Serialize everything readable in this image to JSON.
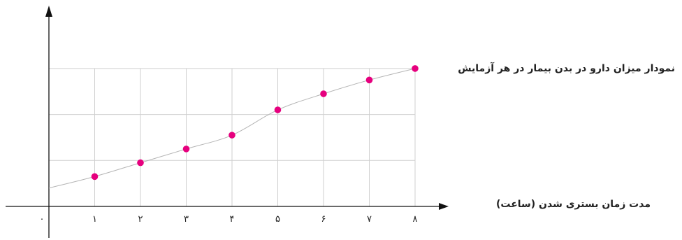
{
  "chart_data": {
    "type": "line",
    "title": "نمودار میزان دارو در بدن بیمار در هر آزمایش",
    "xlabel": "مدت زمان بستری شدن (ساعت)",
    "ylabel": "",
    "x": [
      1,
      2,
      3,
      4,
      5,
      6,
      7,
      8
    ],
    "values": [
      0.65,
      0.95,
      1.25,
      1.55,
      2.1,
      2.45,
      2.75,
      3.0
    ],
    "tick_labels": [
      "۰",
      "۱",
      "۲",
      "۳",
      "۴",
      "۵",
      "۶",
      "۷",
      "۸"
    ],
    "xlim": [
      0,
      8
    ],
    "ylim": [
      0,
      3
    ],
    "grid": true,
    "colors": {
      "points": "#e6007e",
      "curve": "#b5b5b5",
      "grid": "#cfcfcf",
      "axis": "#111111"
    }
  }
}
